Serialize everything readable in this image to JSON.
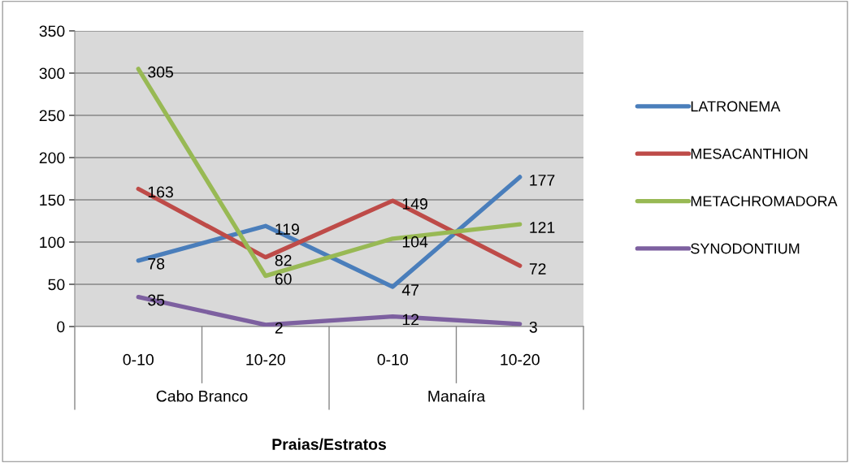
{
  "chart_data": {
    "type": "line",
    "xlabel": "Praias/Estratos",
    "categories": [
      "0-10",
      "10-20",
      "0-10",
      "10-20"
    ],
    "annotations": [
      "Cabo Branco",
      "Manaíra"
    ],
    "series": [
      {
        "name": "LATRONEMA",
        "color": "#4a7ebb",
        "values": [
          78,
          119,
          47,
          177
        ]
      },
      {
        "name": "MESACANTHION",
        "color": "#be4b48",
        "values": [
          163,
          82,
          149,
          72
        ]
      },
      {
        "name": "METACHROMADORA",
        "color": "#98b954",
        "values": [
          305,
          60,
          104,
          121
        ]
      },
      {
        "name": "SYNODONTIUM",
        "color": "#7d60a0",
        "values": [
          35,
          2,
          12,
          3
        ]
      }
    ],
    "ylim": [
      0,
      350
    ],
    "yticks": [
      0,
      50,
      100,
      150,
      200,
      250,
      300,
      350
    ],
    "grid": "y",
    "legend": "right",
    "data_labels": true,
    "marker": "none",
    "line_style": "solid"
  }
}
